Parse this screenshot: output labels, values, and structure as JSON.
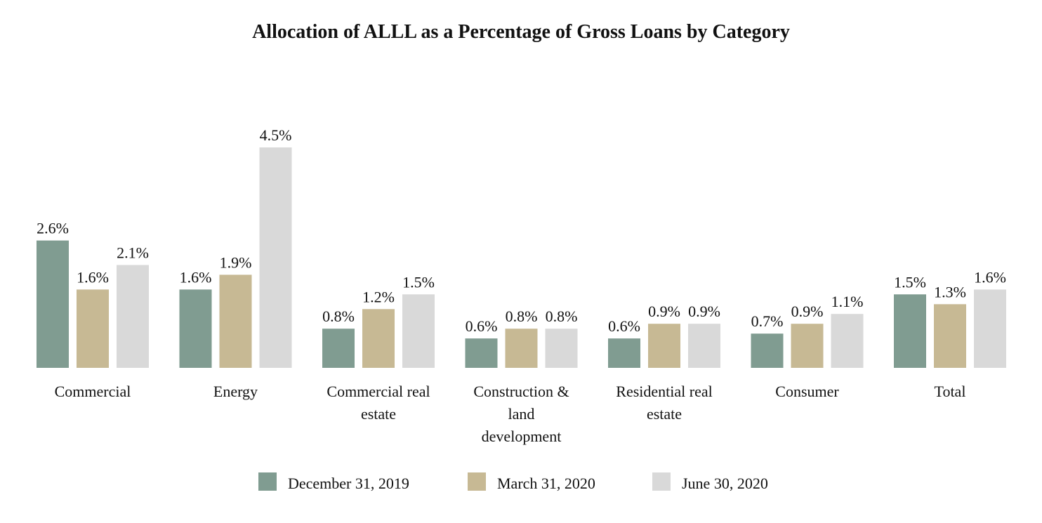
{
  "chart_data": {
    "type": "bar",
    "title": "Allocation of ALLL as a Percentage of Gross Loans by Category",
    "xlabel": "",
    "ylabel": "",
    "ylim": [
      0,
      4.5
    ],
    "grid": false,
    "legend_position": "bottom-center",
    "categories": [
      [
        "Commercial"
      ],
      [
        "Energy"
      ],
      [
        "Commercial real",
        "estate"
      ],
      [
        "Construction &",
        "land",
        "development"
      ],
      [
        "Residential real",
        "estate"
      ],
      [
        "Consumer"
      ],
      [
        "Total"
      ]
    ],
    "series": [
      {
        "name": "December 31, 2019",
        "color": "#809c91",
        "values": [
          2.6,
          1.6,
          0.8,
          0.6,
          0.6,
          0.7,
          1.5
        ],
        "labels": [
          "2.6%",
          "1.6%",
          "0.8%",
          "0.6%",
          "0.6%",
          "0.7%",
          "1.5%"
        ]
      },
      {
        "name": "March 31, 2020",
        "color": "#c7b994",
        "values": [
          1.6,
          1.9,
          1.2,
          0.8,
          0.9,
          0.9,
          1.3
        ],
        "labels": [
          "1.6%",
          "1.9%",
          "1.2%",
          "0.8%",
          "0.9%",
          "0.9%",
          "1.3%"
        ]
      },
      {
        "name": "June 30, 2020",
        "color": "#d9d9d9",
        "values": [
          2.1,
          4.5,
          1.5,
          0.8,
          0.9,
          1.1,
          1.6
        ],
        "labels": [
          "2.1%",
          "4.5%",
          "1.5%",
          "0.8%",
          "0.9%",
          "1.1%",
          "1.6%"
        ]
      }
    ]
  }
}
